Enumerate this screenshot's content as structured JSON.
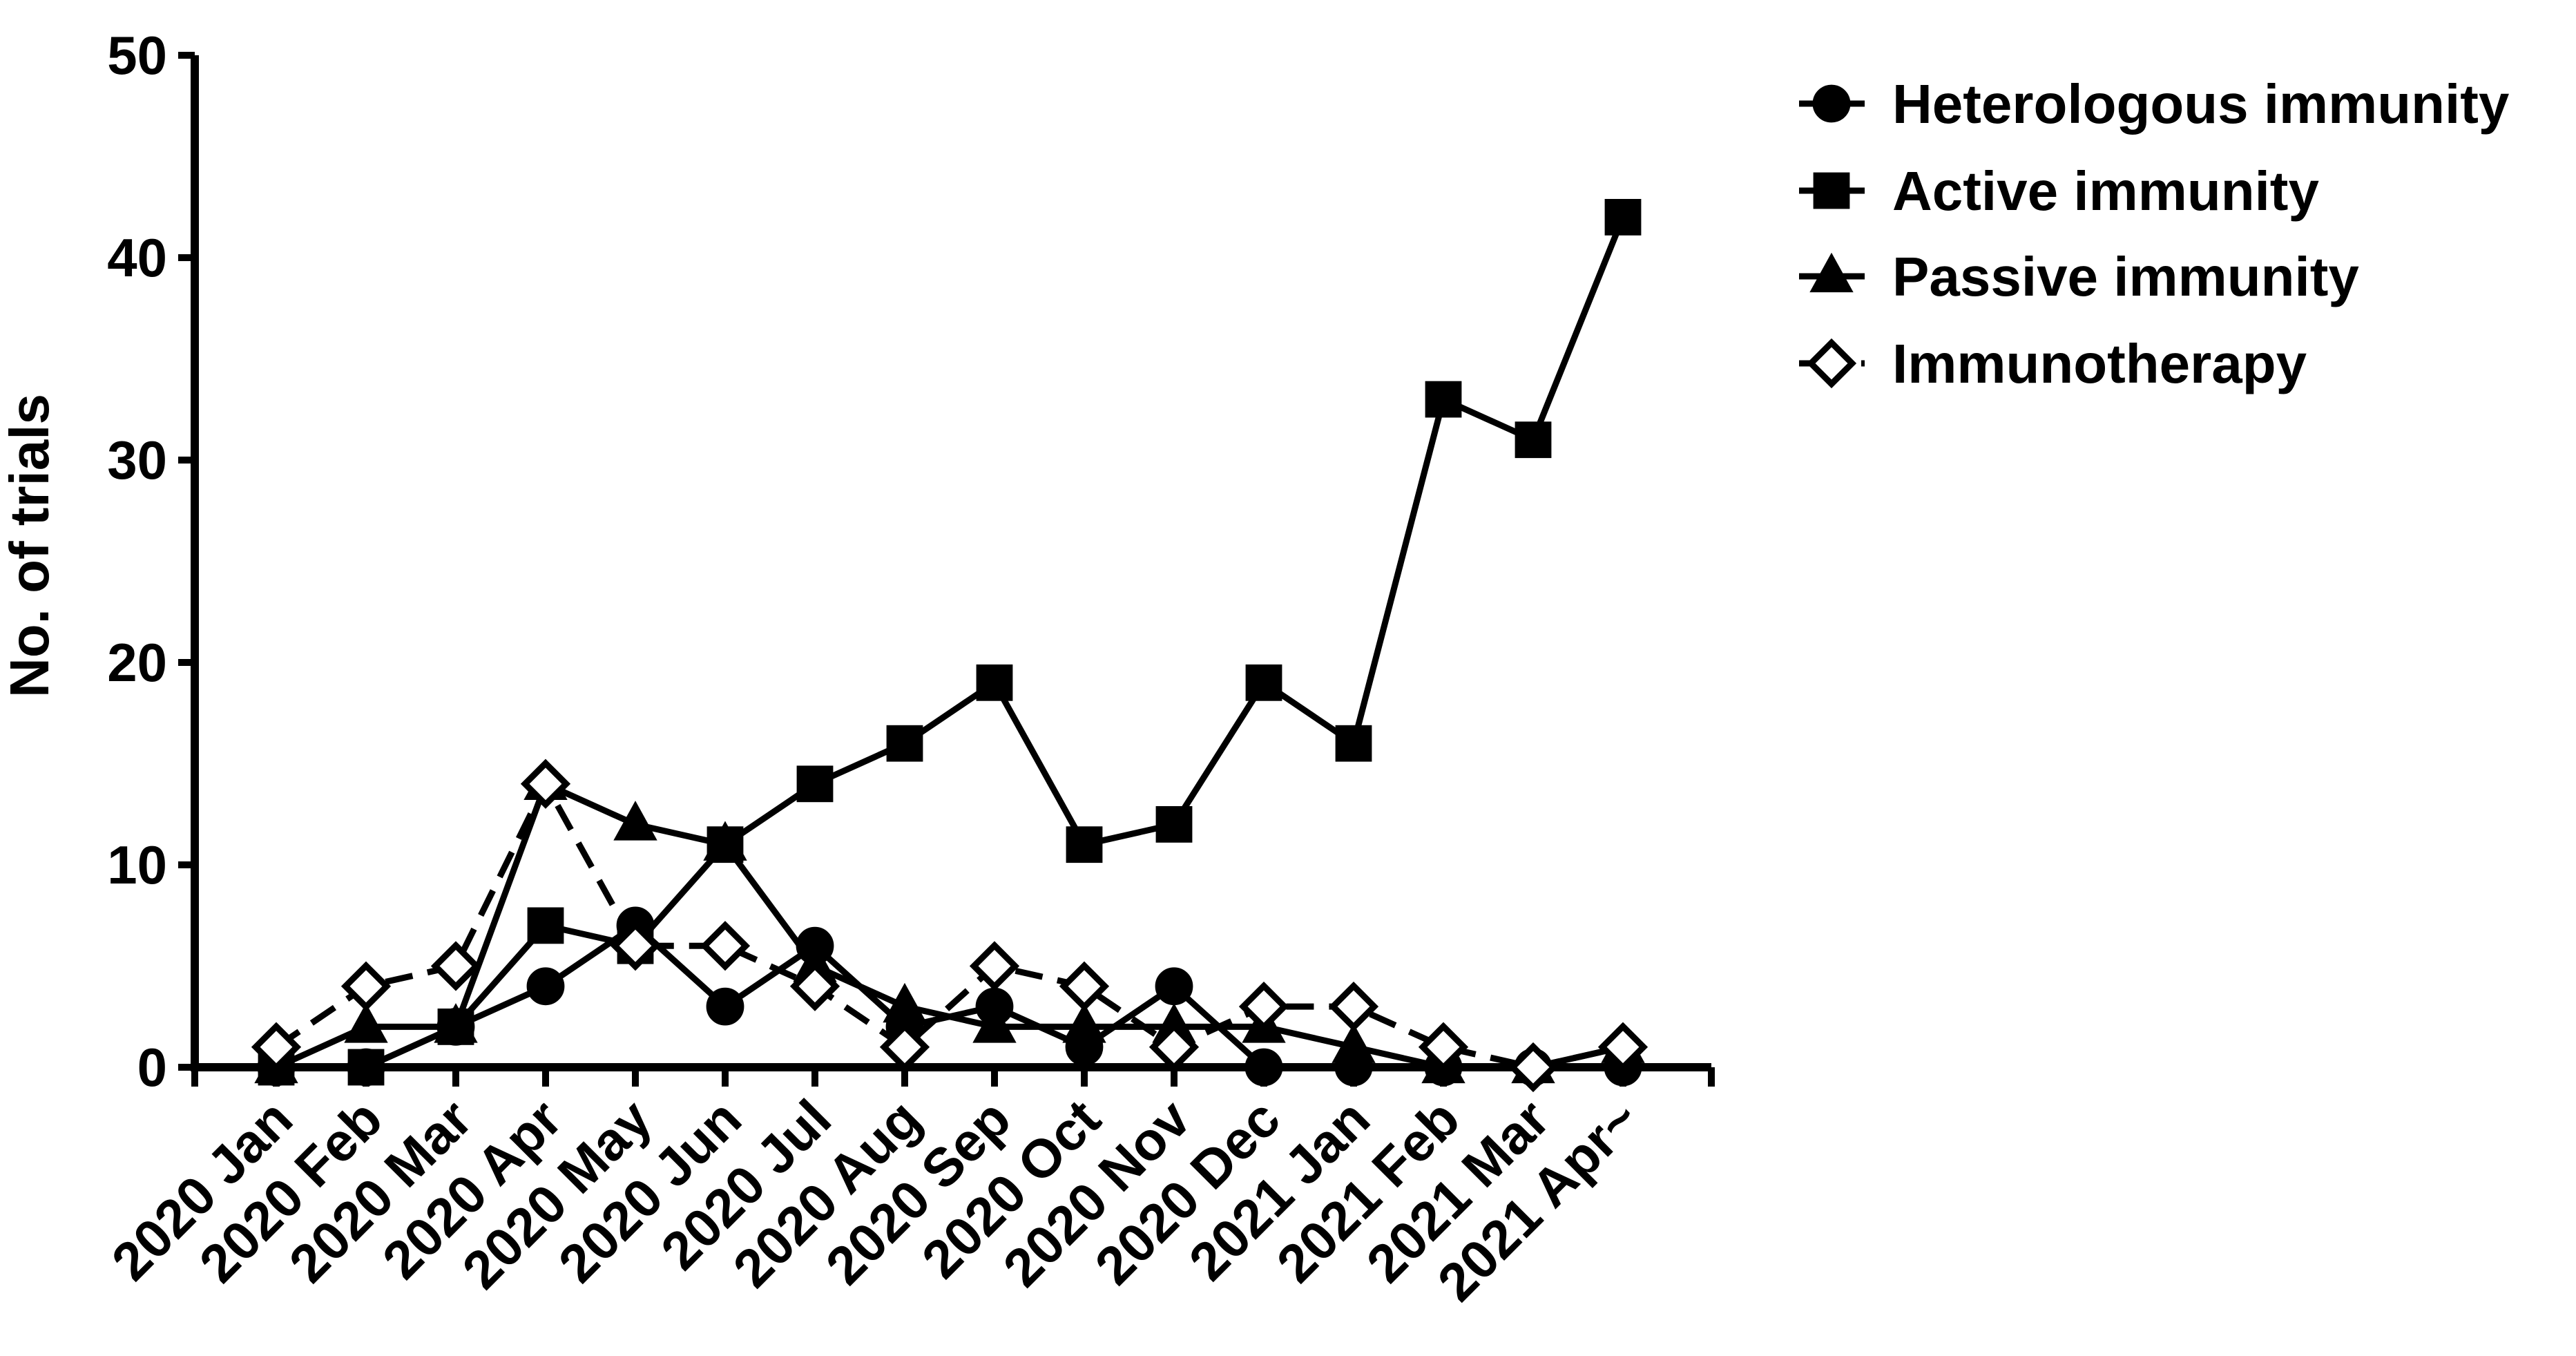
{
  "chart_data": {
    "type": "line",
    "ylabel": "No. of trials",
    "xlabel": "",
    "ylim": [
      0,
      50
    ],
    "yticks": [
      "0",
      "10",
      "20",
      "30",
      "40",
      "50"
    ],
    "grid": false,
    "legend_position": "top-right",
    "categories": [
      "2020 Jan",
      "2020 Feb",
      "2020 Mar",
      "2020 Apr",
      "2020 May",
      "2020 Jun",
      "2020 Jul",
      "2020 Aug",
      "2020 Sep",
      "2020 Oct",
      "2020 Nov",
      "2020 Dec",
      "2021 Jan",
      "2021 Feb",
      "2021 Mar",
      "2021 Apr~"
    ],
    "series": [
      {
        "name": "Heterologous immunity",
        "marker": "circle",
        "line_style": "solid",
        "color": "#000000",
        "values": [
          0,
          0,
          2,
          4,
          7,
          3,
          6,
          2,
          3,
          1,
          4,
          0,
          0,
          0,
          0,
          0
        ]
      },
      {
        "name": "Active immunity",
        "marker": "square",
        "line_style": "solid",
        "color": "#000000",
        "values": [
          0,
          0,
          2,
          7,
          6,
          11,
          14,
          16,
          19,
          11,
          12,
          19,
          16,
          33,
          31,
          42
        ]
      },
      {
        "name": "Passive immunity",
        "marker": "triangle",
        "line_style": "solid",
        "color": "#000000",
        "values": [
          0,
          2,
          2,
          14,
          12,
          11,
          5,
          3,
          2,
          2,
          2,
          2,
          1,
          0,
          0,
          1
        ]
      },
      {
        "name": "Immunotherapy",
        "marker": "diamond-open",
        "line_style": "dashed",
        "color": "#000000",
        "values": [
          1,
          4,
          5,
          14,
          6,
          6,
          4,
          1,
          5,
          4,
          1,
          3,
          3,
          1,
          0,
          1
        ]
      }
    ]
  }
}
